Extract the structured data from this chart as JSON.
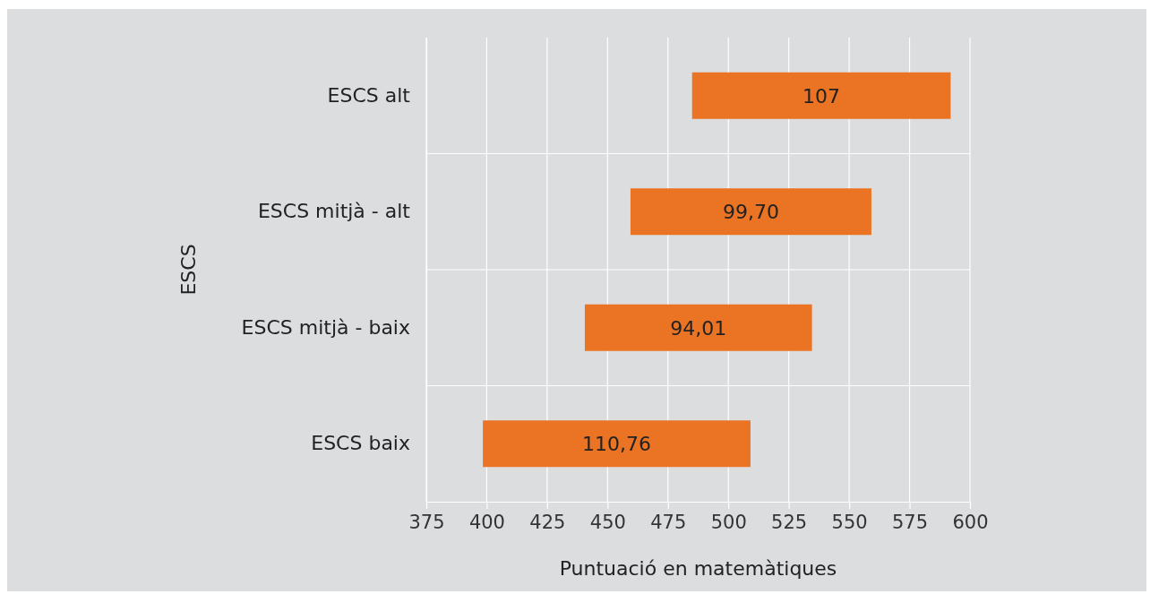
{
  "chart_data": {
    "type": "bar",
    "orientation": "horizontal",
    "categories": [
      "ESCS alt",
      "ESCS mitjà - alt",
      "ESCS mitjà - baix",
      "ESCS baix"
    ],
    "base": [
      485,
      459.5,
      440.6,
      398.4
    ],
    "values": [
      107,
      99.7,
      94.01,
      110.76
    ],
    "value_labels": [
      "107",
      "99,70",
      "94,01",
      "110,76"
    ],
    "color": "#ea7424",
    "xlim": [
      375,
      600
    ],
    "xticks": [
      375,
      400,
      425,
      450,
      475,
      500,
      525,
      550,
      575,
      600
    ],
    "grid": "x",
    "xlabel": "Puntuació en matemàtiques",
    "ylabel": "ESCS"
  }
}
